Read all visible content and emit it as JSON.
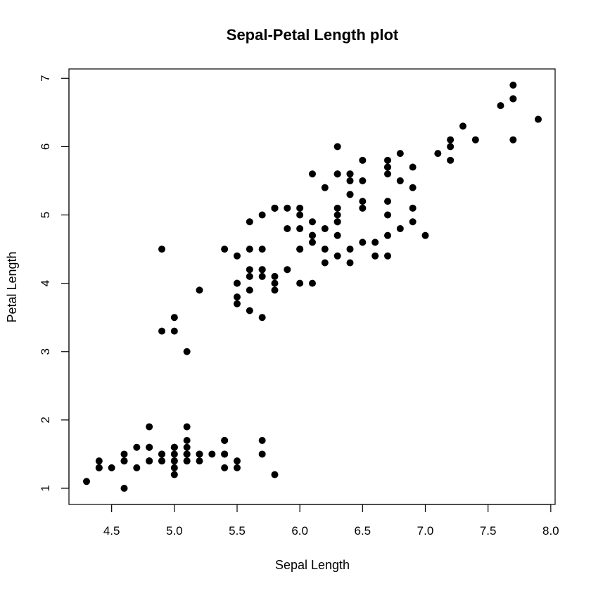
{
  "chart_data": {
    "type": "scatter",
    "title": "Sepal-Petal Length plot",
    "xlabel": "Sepal Length",
    "ylabel": "Petal Length",
    "xlim": [
      4.3,
      7.9
    ],
    "ylim": [
      1.0,
      6.9
    ],
    "xticks": [
      "4.5",
      "5.0",
      "5.5",
      "6.0",
      "6.5",
      "7.0",
      "7.5",
      "8.0"
    ],
    "yticks": [
      "1",
      "2",
      "3",
      "4",
      "5",
      "6",
      "7"
    ],
    "grid": false,
    "series": [
      {
        "marker_color": "#000000",
        "points": [
          [
            5.1,
            1.4
          ],
          [
            4.9,
            1.4
          ],
          [
            4.7,
            1.3
          ],
          [
            4.6,
            1.5
          ],
          [
            5.0,
            1.4
          ],
          [
            5.4,
            1.7
          ],
          [
            4.6,
            1.4
          ],
          [
            5.0,
            1.5
          ],
          [
            4.4,
            1.4
          ],
          [
            4.9,
            1.5
          ],
          [
            5.4,
            1.5
          ],
          [
            4.8,
            1.6
          ],
          [
            4.8,
            1.4
          ],
          [
            4.3,
            1.1
          ],
          [
            5.8,
            1.2
          ],
          [
            5.7,
            1.5
          ],
          [
            5.4,
            1.3
          ],
          [
            5.1,
            1.4
          ],
          [
            5.7,
            1.7
          ],
          [
            5.1,
            1.5
          ],
          [
            5.4,
            1.7
          ],
          [
            5.1,
            1.5
          ],
          [
            4.6,
            1.0
          ],
          [
            5.1,
            1.7
          ],
          [
            4.8,
            1.9
          ],
          [
            5.0,
            1.6
          ],
          [
            5.0,
            1.6
          ],
          [
            5.2,
            1.5
          ],
          [
            5.2,
            1.4
          ],
          [
            4.7,
            1.6
          ],
          [
            4.8,
            1.6
          ],
          [
            5.4,
            1.5
          ],
          [
            5.2,
            1.5
          ],
          [
            5.5,
            1.4
          ],
          [
            4.9,
            1.5
          ],
          [
            5.0,
            1.2
          ],
          [
            5.5,
            1.3
          ],
          [
            4.9,
            1.4
          ],
          [
            4.4,
            1.3
          ],
          [
            5.1,
            1.5
          ],
          [
            5.0,
            1.3
          ],
          [
            4.5,
            1.3
          ],
          [
            4.4,
            1.3
          ],
          [
            5.0,
            1.6
          ],
          [
            5.1,
            1.9
          ],
          [
            4.8,
            1.4
          ],
          [
            5.1,
            1.6
          ],
          [
            4.6,
            1.4
          ],
          [
            5.3,
            1.5
          ],
          [
            5.0,
            1.4
          ],
          [
            7.0,
            4.7
          ],
          [
            6.4,
            4.5
          ],
          [
            6.9,
            4.9
          ],
          [
            5.5,
            4.0
          ],
          [
            6.5,
            4.6
          ],
          [
            5.7,
            4.5
          ],
          [
            6.3,
            4.7
          ],
          [
            4.9,
            3.3
          ],
          [
            6.6,
            4.6
          ],
          [
            5.2,
            3.9
          ],
          [
            5.0,
            3.5
          ],
          [
            5.9,
            4.2
          ],
          [
            6.0,
            4.0
          ],
          [
            6.1,
            4.7
          ],
          [
            5.6,
            3.6
          ],
          [
            6.7,
            4.4
          ],
          [
            5.6,
            4.5
          ],
          [
            5.8,
            4.1
          ],
          [
            6.2,
            4.5
          ],
          [
            5.6,
            3.9
          ],
          [
            5.9,
            4.8
          ],
          [
            6.1,
            4.0
          ],
          [
            6.3,
            4.9
          ],
          [
            6.1,
            4.7
          ],
          [
            6.4,
            4.3
          ],
          [
            6.6,
            4.4
          ],
          [
            6.8,
            4.8
          ],
          [
            6.7,
            5.0
          ],
          [
            6.0,
            4.5
          ],
          [
            5.7,
            3.5
          ],
          [
            5.5,
            3.8
          ],
          [
            5.5,
            3.7
          ],
          [
            5.8,
            3.9
          ],
          [
            6.0,
            5.1
          ],
          [
            5.4,
            4.5
          ],
          [
            6.0,
            4.5
          ],
          [
            6.7,
            4.7
          ],
          [
            6.3,
            4.4
          ],
          [
            5.6,
            4.1
          ],
          [
            5.5,
            4.0
          ],
          [
            5.5,
            4.4
          ],
          [
            6.1,
            4.6
          ],
          [
            5.8,
            4.0
          ],
          [
            5.0,
            3.3
          ],
          [
            5.6,
            4.2
          ],
          [
            5.7,
            4.2
          ],
          [
            5.7,
            4.2
          ],
          [
            6.2,
            4.3
          ],
          [
            5.1,
            3.0
          ],
          [
            5.7,
            4.1
          ],
          [
            6.3,
            6.0
          ],
          [
            5.8,
            5.1
          ],
          [
            7.1,
            5.9
          ],
          [
            6.3,
            5.6
          ],
          [
            6.5,
            5.8
          ],
          [
            7.6,
            6.6
          ],
          [
            4.9,
            4.5
          ],
          [
            7.3,
            6.3
          ],
          [
            6.7,
            5.8
          ],
          [
            7.2,
            6.1
          ],
          [
            6.5,
            5.1
          ],
          [
            6.4,
            5.3
          ],
          [
            6.8,
            5.5
          ],
          [
            5.7,
            5.0
          ],
          [
            5.8,
            5.1
          ],
          [
            6.4,
            5.3
          ],
          [
            6.5,
            5.5
          ],
          [
            7.7,
            6.7
          ],
          [
            7.7,
            6.9
          ],
          [
            6.0,
            5.0
          ],
          [
            6.9,
            5.7
          ],
          [
            5.6,
            4.9
          ],
          [
            7.7,
            6.7
          ],
          [
            6.3,
            4.9
          ],
          [
            6.7,
            5.7
          ],
          [
            7.2,
            6.0
          ],
          [
            6.2,
            4.8
          ],
          [
            6.1,
            4.9
          ],
          [
            6.4,
            5.6
          ],
          [
            7.2,
            5.8
          ],
          [
            7.4,
            6.1
          ],
          [
            7.9,
            6.4
          ],
          [
            6.4,
            5.6
          ],
          [
            6.3,
            5.1
          ],
          [
            6.1,
            5.6
          ],
          [
            7.7,
            6.1
          ],
          [
            6.3,
            5.6
          ],
          [
            6.4,
            5.5
          ],
          [
            6.0,
            4.8
          ],
          [
            6.9,
            5.4
          ],
          [
            6.7,
            5.6
          ],
          [
            6.9,
            5.1
          ],
          [
            5.8,
            5.1
          ],
          [
            6.8,
            5.9
          ],
          [
            6.7,
            5.7
          ],
          [
            6.7,
            5.2
          ],
          [
            6.3,
            5.0
          ],
          [
            6.5,
            5.2
          ],
          [
            6.2,
            5.4
          ],
          [
            5.9,
            5.1
          ]
        ]
      }
    ]
  }
}
